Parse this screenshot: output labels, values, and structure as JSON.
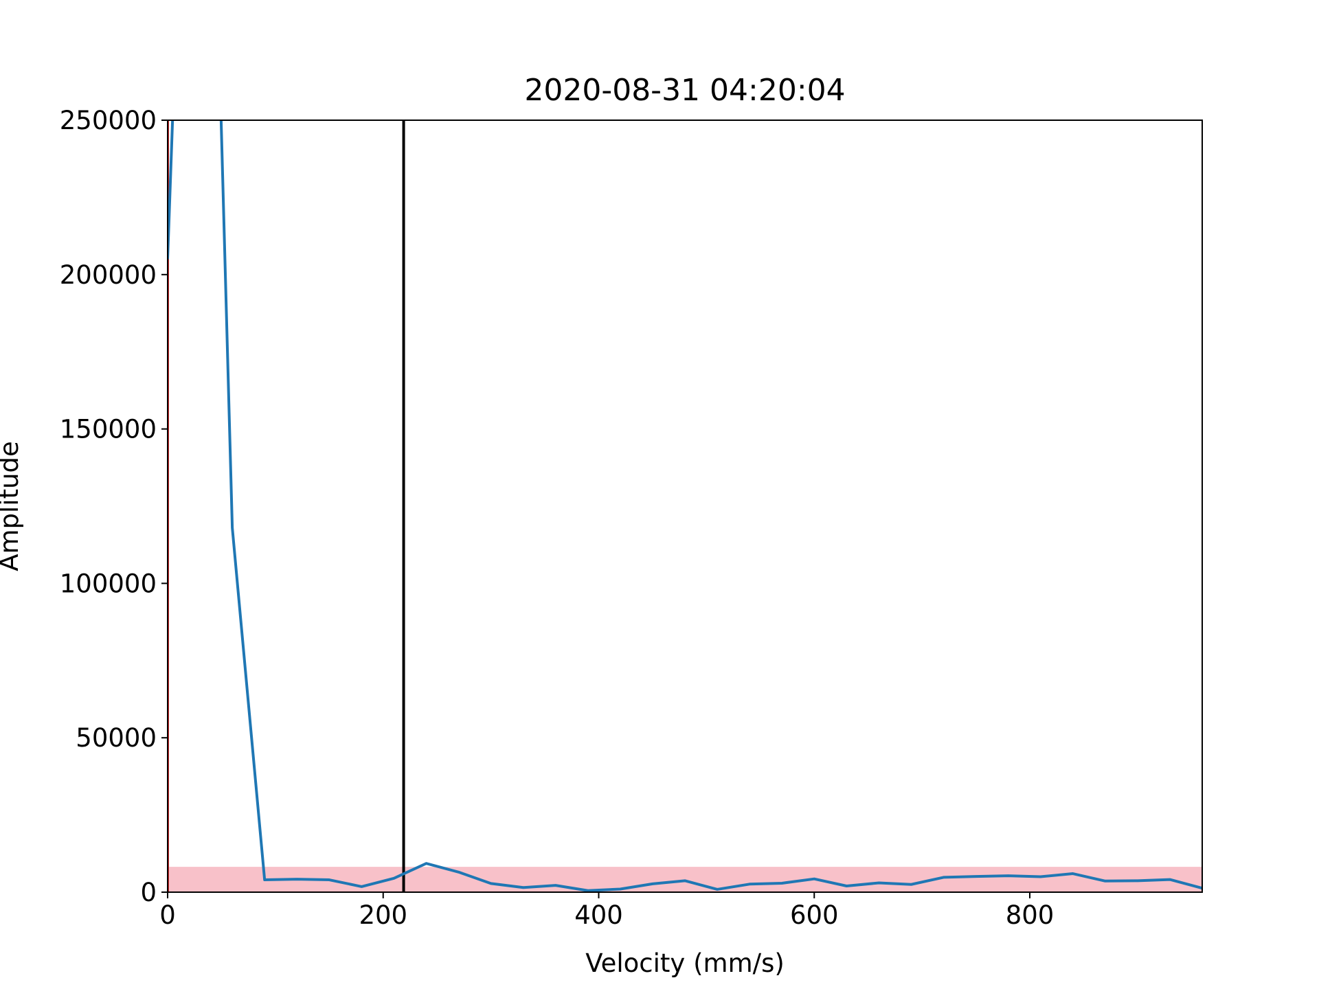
{
  "chart_data": {
    "type": "line",
    "title": "2020-08-31 04:20:04",
    "xlabel": "Velocity (mm/s)",
    "ylabel": "Amplitude",
    "xlim": [
      0,
      960
    ],
    "ylim": [
      0,
      250000
    ],
    "xticks": [
      0,
      200,
      400,
      600,
      800
    ],
    "yticks": [
      0,
      50000,
      100000,
      150000,
      200000,
      250000
    ],
    "grid": false,
    "legend": "none",
    "threshold_band": {
      "y_min": 0,
      "y_max": 8200,
      "color": "#f8c1c9"
    },
    "vertical_line": {
      "x": 219,
      "color": "#000000"
    },
    "left_edge_line_color": "#d62728",
    "series": [
      {
        "color": "#1f77b4",
        "x": [
          0,
          30,
          60,
          90,
          120,
          150,
          180,
          210,
          240,
          270,
          300,
          330,
          360,
          390,
          420,
          450,
          480,
          510,
          540,
          570,
          600,
          630,
          660,
          690,
          720,
          750,
          780,
          810,
          840,
          870,
          900,
          930,
          960
        ],
        "y": [
          205000,
          500000,
          118000,
          4000,
          4200,
          4000,
          1800,
          4500,
          9300,
          6500,
          2800,
          1500,
          2200,
          500,
          1000,
          2700,
          3700,
          900,
          2600,
          2900,
          4300,
          2000,
          3000,
          2500,
          4800,
          5100,
          5300,
          5000,
          6000,
          3600,
          3700,
          4100,
          1300
        ]
      }
    ]
  }
}
